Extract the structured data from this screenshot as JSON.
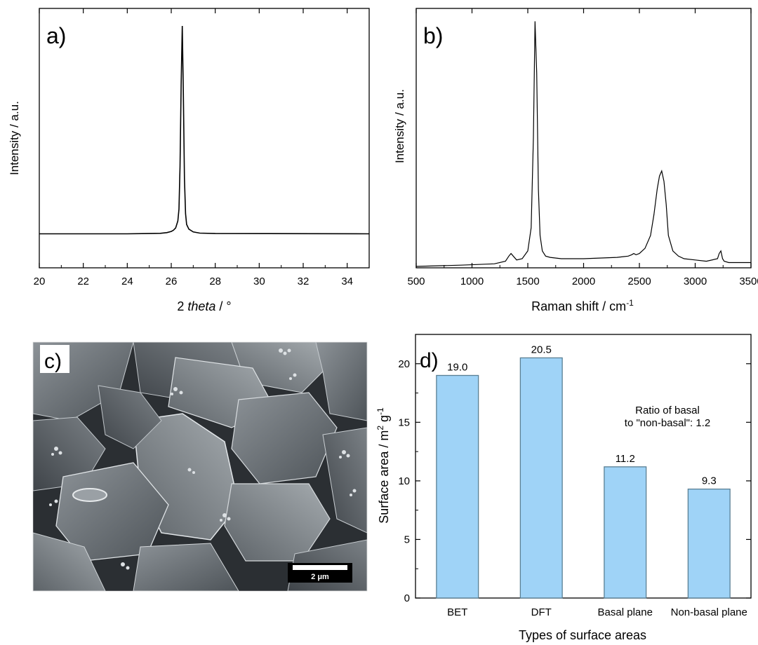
{
  "panels": {
    "a": {
      "label": "a)",
      "chart_data": {
        "type": "line",
        "xlabel_prefix": "2 ",
        "xlabel_italic": "theta",
        "xlabel_suffix": " / °",
        "ylabel": "Intensity / a.u.",
        "xlim": [
          20,
          35
        ],
        "ylim": [
          0,
          1
        ],
        "xticks": [
          20,
          22,
          24,
          26,
          28,
          30,
          32,
          34
        ],
        "series": [
          {
            "x": [
              20,
              24,
              25,
              25.5,
              25.8,
              26.0,
              26.1,
              26.2,
              26.3,
              26.35,
              26.4,
              26.45,
              26.5,
              26.55,
              26.6,
              26.65,
              26.7,
              26.8,
              27.0,
              27.3,
              28,
              35
            ],
            "y": [
              0.115,
              0.115,
              0.116,
              0.117,
              0.12,
              0.125,
              0.13,
              0.14,
              0.17,
              0.22,
              0.4,
              0.75,
              1.0,
              0.72,
              0.35,
              0.2,
              0.155,
              0.135,
              0.123,
              0.118,
              0.116,
              0.115
            ]
          }
        ]
      }
    },
    "b": {
      "label": "b)",
      "chart_data": {
        "type": "line",
        "xlabel": "Raman shift / cm",
        "xlabel_sup": "-1",
        "ylabel": "Intensity / a.u.",
        "xlim": [
          500,
          3500
        ],
        "ylim": [
          0,
          1
        ],
        "xticks": [
          500,
          1000,
          1500,
          2000,
          2500,
          3000,
          3500
        ],
        "series": [
          {
            "x": [
              500,
              900,
              1200,
              1300,
              1330,
              1350,
              1370,
              1400,
              1450,
              1500,
              1530,
              1550,
              1565,
              1580,
              1595,
              1610,
              1630,
              1660,
              1700,
              1800,
              2000,
              2300,
              2400,
              2430,
              2450,
              2470,
              2500,
              2550,
              2600,
              2630,
              2660,
              2680,
              2700,
              2720,
              2740,
              2760,
              2800,
              2850,
              2900,
              3000,
              3100,
              3200,
              3215,
              3230,
              3245,
              3260,
              3300,
              3500
            ],
            "y": [
              0.0,
              0.005,
              0.01,
              0.02,
              0.04,
              0.05,
              0.04,
              0.025,
              0.03,
              0.06,
              0.15,
              0.5,
              0.95,
              0.75,
              0.3,
              0.12,
              0.06,
              0.04,
              0.035,
              0.03,
              0.03,
              0.035,
              0.04,
              0.045,
              0.05,
              0.045,
              0.05,
              0.07,
              0.12,
              0.2,
              0.3,
              0.35,
              0.37,
              0.33,
              0.24,
              0.12,
              0.06,
              0.04,
              0.03,
              0.025,
              0.02,
              0.03,
              0.05,
              0.06,
              0.03,
              0.02,
              0.015,
              0.015
            ]
          }
        ]
      }
    },
    "c": {
      "label": "c)",
      "scalebar_label": "2 μm"
    },
    "d": {
      "label": "d)",
      "chart_data": {
        "type": "bar",
        "categories": [
          "BET",
          "DFT",
          "Basal plane",
          "Non-basal plane"
        ],
        "values": [
          19.0,
          20.5,
          11.2,
          9.3
        ],
        "value_labels": [
          "19.0",
          "20.5",
          "11.2",
          "9.3"
        ],
        "xlabel": "Types of surface areas",
        "ylabel_main": "Surface area / m",
        "ylabel_sup1": "2",
        "ylabel_mid": " g",
        "ylabel_sup2": "-1",
        "ylim": [
          0,
          22.5
        ],
        "yticks": [
          0,
          5,
          10,
          15,
          20
        ],
        "annotation_line1": "Ratio of basal",
        "annotation_line2": "to \"non-basal\": 1.2",
        "bar_color": "#9fd3f7",
        "bar_edge": "#5a7f94"
      }
    }
  }
}
